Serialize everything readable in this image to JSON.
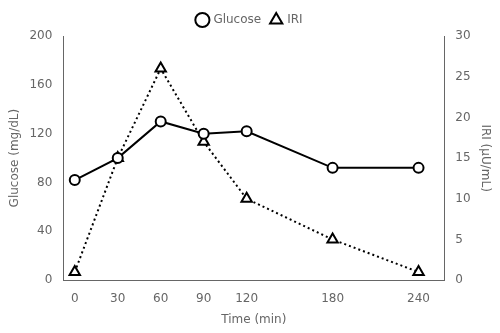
{
  "chart_data": {
    "type": "line",
    "x": [
      0,
      30,
      60,
      90,
      120,
      180,
      240
    ],
    "series": [
      {
        "name": "Glucose",
        "values": [
          82,
          100,
          130,
          120,
          122,
          92,
          92
        ],
        "color": "#000000",
        "marker": "circle",
        "line_style": "solid"
      },
      {
        "name": "IRI",
        "values": [
          1,
          15,
          26,
          17,
          10,
          5,
          1
        ],
        "color": "#000000",
        "marker": "triangle",
        "line_style": "dotted",
        "axis": "y2"
      }
    ],
    "xlabel": "Time (min)",
    "ylabel": "Glucose (mg/dL)",
    "y2label": "IRI (μU/mL)",
    "xlim": [
      -8,
      258
    ],
    "xticks": [
      0,
      30,
      60,
      90,
      120,
      180,
      240
    ],
    "ylim": [
      0,
      200
    ],
    "yticks": [
      0,
      40,
      80,
      120,
      160,
      200
    ],
    "y2lim": [
      0,
      30
    ],
    "y2ticks": [
      0,
      5,
      10,
      15,
      20,
      25,
      30
    ],
    "grid": false,
    "legend": "top"
  }
}
